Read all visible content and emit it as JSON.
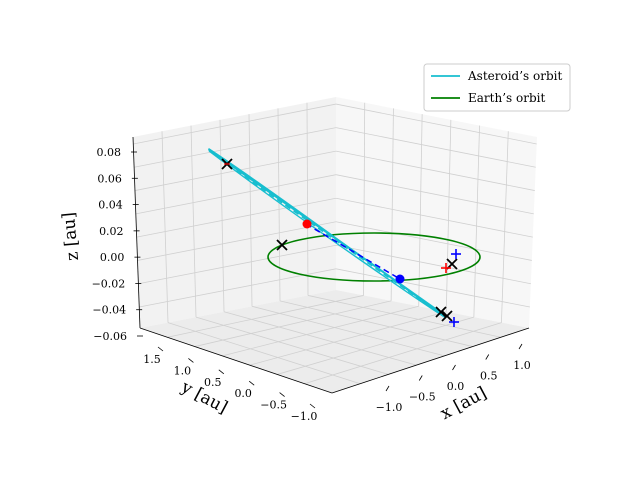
{
  "chart_data": {
    "type": "line3d",
    "axes": {
      "x": {
        "label": "x [au]",
        "ticks": [
          "−1.0",
          "−0.5",
          "0.0",
          "0.5",
          "1.0"
        ]
      },
      "y": {
        "label": "y [au]",
        "ticks": [
          "1.5",
          "1.0",
          "0.5",
          "0.0",
          "−0.5",
          "−1.0"
        ]
      },
      "z": {
        "label": "z [au]",
        "ticks": [
          "0.08",
          "0.06",
          "0.04",
          "0.02",
          "0.00",
          "−0.02",
          "−0.04",
          "−0.06"
        ]
      }
    },
    "legend": {
      "position": "top-right",
      "entries": [
        {
          "label": "Asteroid’s orbit",
          "color": "#17becf"
        },
        {
          "label": "Earth’s orbit",
          "color": "#008000"
        }
      ]
    },
    "series": [
      {
        "name": "Asteroid’s orbit",
        "color": "#17becf",
        "style": "solid"
      },
      {
        "name": "Earth’s orbit",
        "color": "#008000",
        "style": "solid"
      }
    ],
    "markers": {
      "crosses": "#000000",
      "red_points": "#ff0000",
      "blue_points": "#0000ff",
      "blue_plus": "#0000ff",
      "red_plus": "#ff0000"
    },
    "grid": true
  }
}
